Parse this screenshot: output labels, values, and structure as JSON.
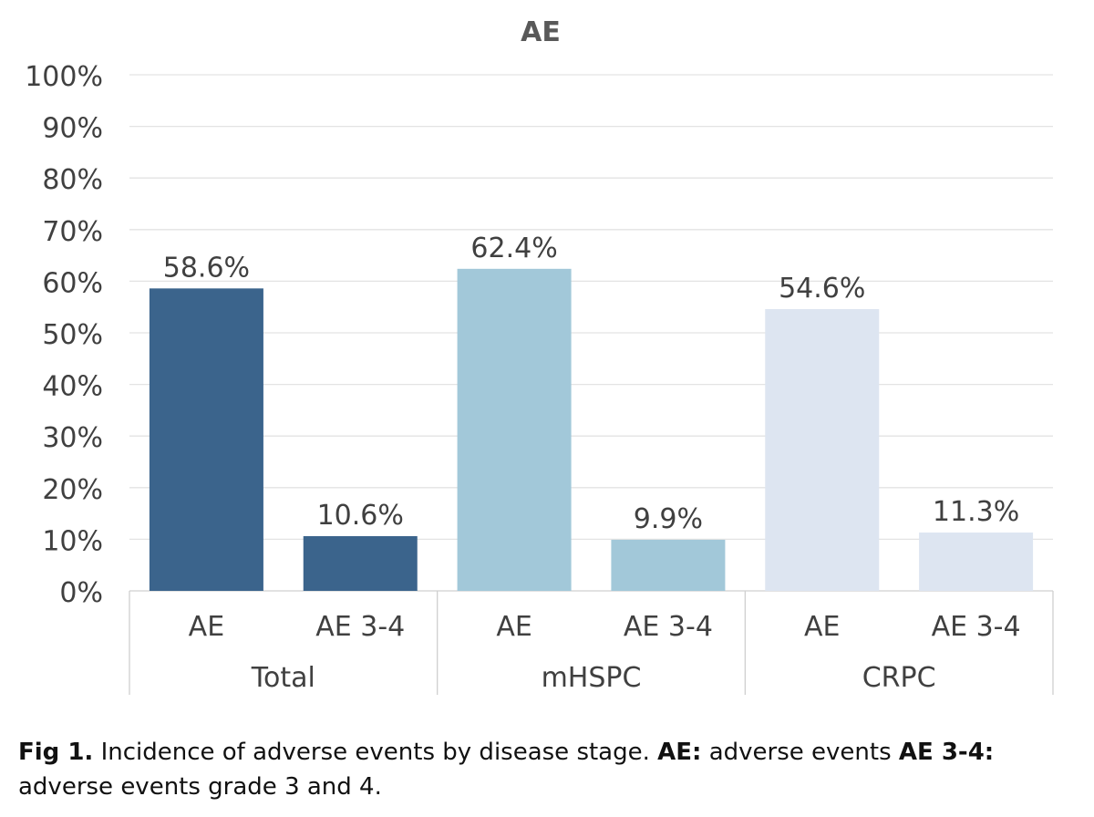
{
  "chart_data": {
    "type": "bar",
    "title": "AE",
    "groups": [
      {
        "name": "Total",
        "color": "#3b648c",
        "bars": [
          {
            "label": "AE",
            "value": 58.6,
            "value_label": "58.6%"
          },
          {
            "label": "AE 3-4",
            "value": 10.6,
            "value_label": "10.6%"
          }
        ]
      },
      {
        "name": "mHSPC",
        "color": "#a2c8d9",
        "bars": [
          {
            "label": "AE",
            "value": 62.4,
            "value_label": "62.4%"
          },
          {
            "label": "AE 3-4",
            "value": 9.9,
            "value_label": "9.9%"
          }
        ]
      },
      {
        "name": "CRPC",
        "color": "#dde5f1",
        "bars": [
          {
            "label": "AE",
            "value": 54.6,
            "value_label": "54.6%"
          },
          {
            "label": "AE 3-4",
            "value": 11.3,
            "value_label": "11.3%"
          }
        ]
      }
    ],
    "y_ticks": [
      "0%",
      "10%",
      "20%",
      "30%",
      "40%",
      "50%",
      "60%",
      "70%",
      "80%",
      "90%",
      "100%"
    ],
    "ylim": [
      0,
      100
    ],
    "grid": true,
    "legend": "none"
  },
  "caption": {
    "fig_label": "Fig 1.",
    "text_1": " Incidence of adverse events by disease stage. ",
    "ae_term": "AE:",
    "ae_def": " adverse events ",
    "ae34_term": "AE 3-4:",
    "ae34_def": " adverse events grade 3 and 4."
  }
}
